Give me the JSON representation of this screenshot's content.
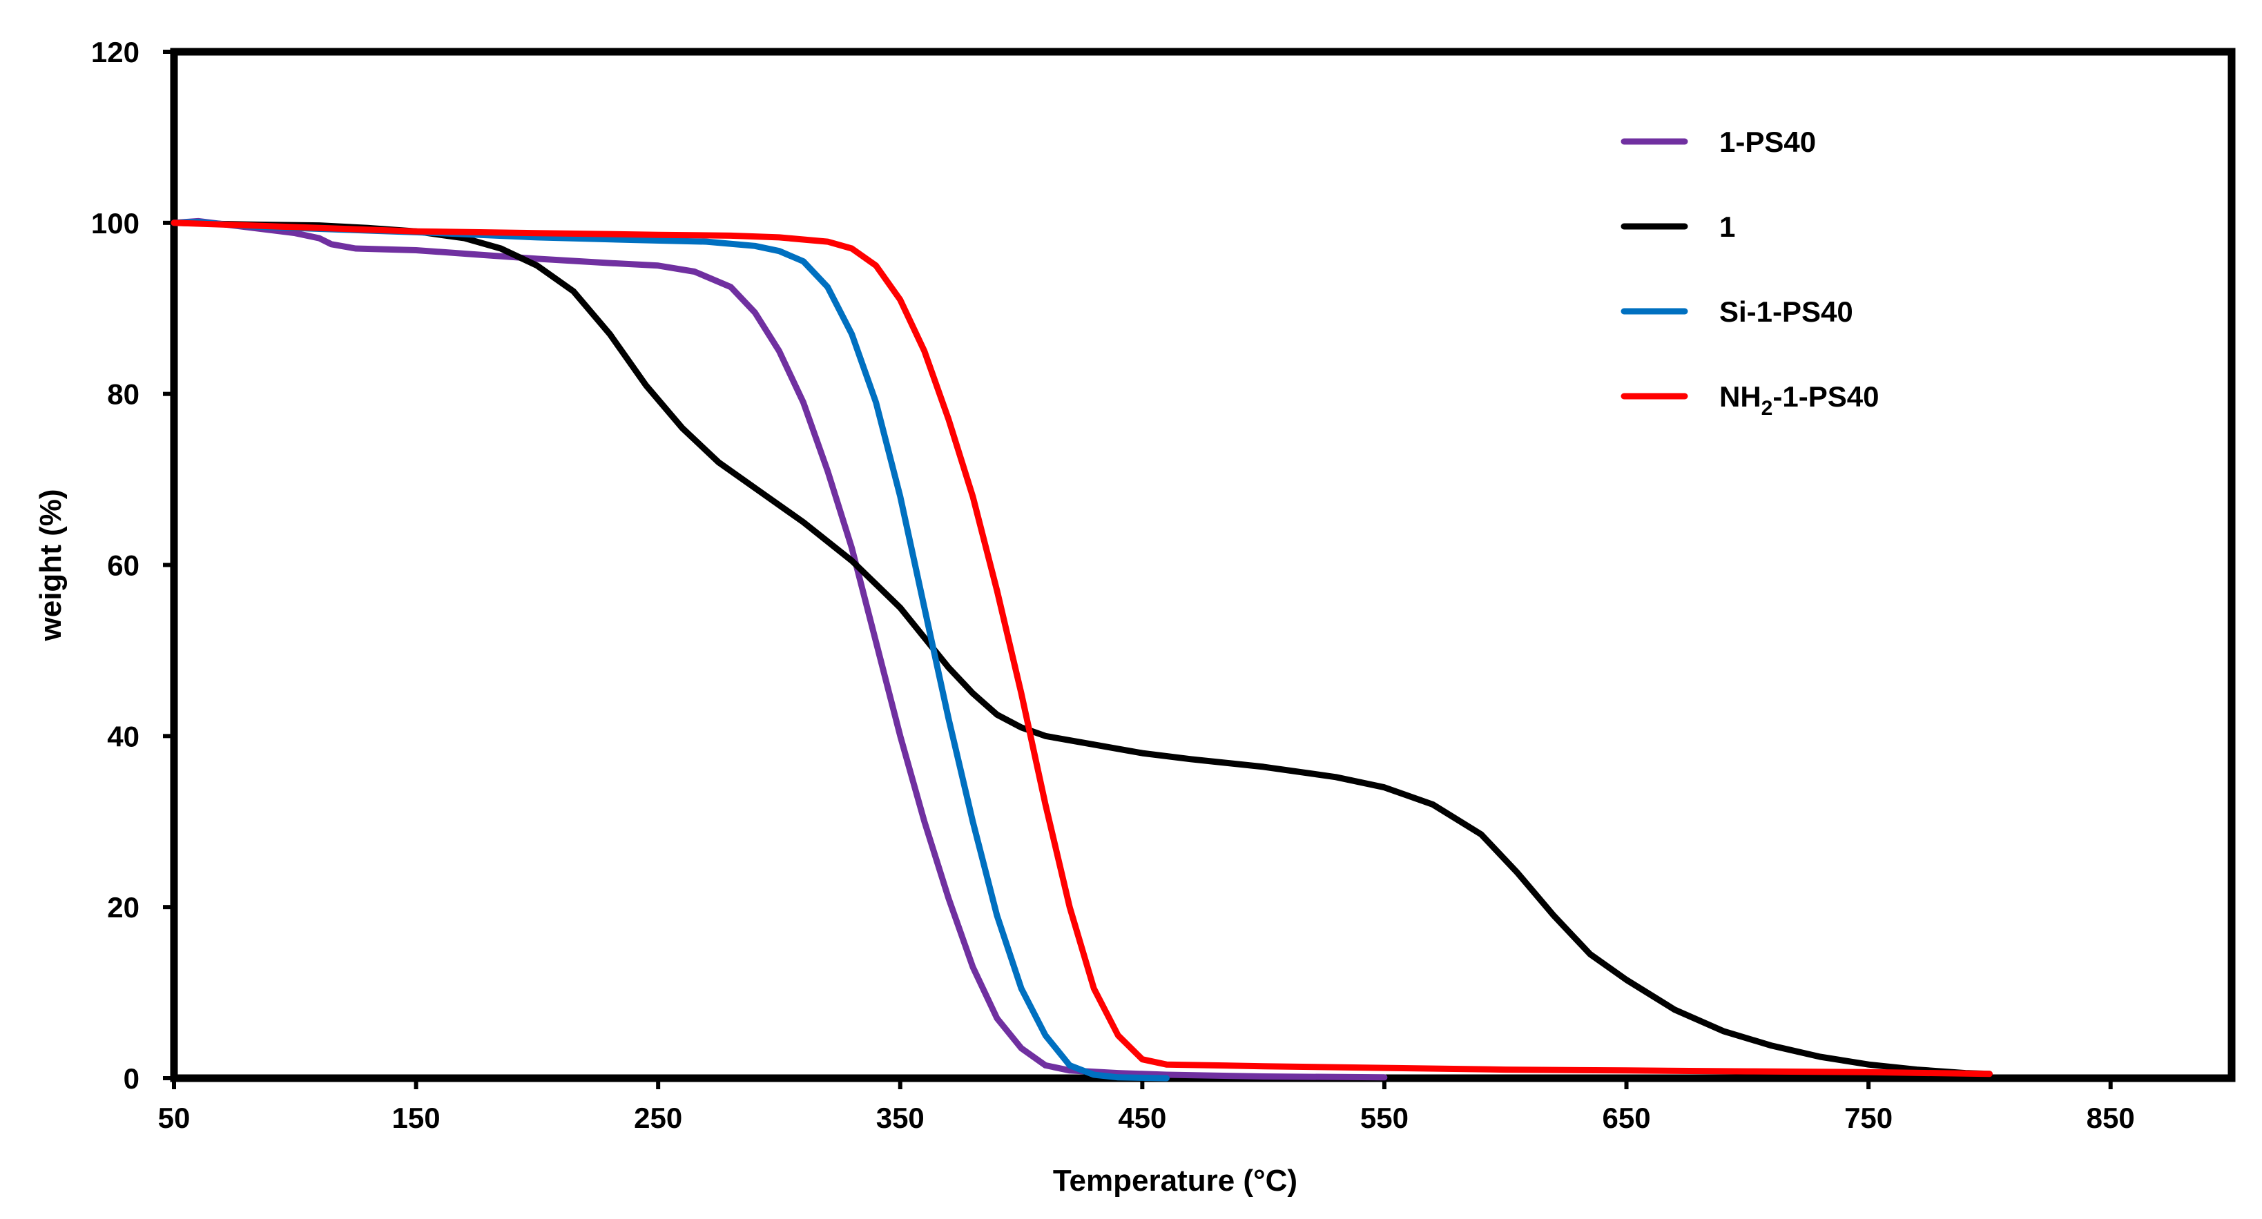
{
  "chart_data": {
    "type": "line",
    "title": "",
    "xlabel": "Temperature (°C)",
    "ylabel": "weight (%)",
    "xlim": [
      50,
      900
    ],
    "ylim": [
      0,
      120
    ],
    "xticks": [
      50,
      150,
      250,
      350,
      450,
      550,
      650,
      750,
      850
    ],
    "yticks": [
      0,
      20,
      40,
      60,
      80,
      100,
      120
    ],
    "grid": false,
    "legend_position": "top-right",
    "series": [
      {
        "name": "1-PS40",
        "label_main": "1-PS40",
        "color": "#7030A0",
        "points": [
          [
            50,
            100
          ],
          [
            60,
            100.2
          ],
          [
            80,
            99.5
          ],
          [
            100,
            98.8
          ],
          [
            110,
            98.2
          ],
          [
            115,
            97.5
          ],
          [
            125,
            97
          ],
          [
            150,
            96.8
          ],
          [
            175,
            96.3
          ],
          [
            200,
            95.8
          ],
          [
            230,
            95.3
          ],
          [
            250,
            95
          ],
          [
            265,
            94.3
          ],
          [
            280,
            92.5
          ],
          [
            290,
            89.5
          ],
          [
            300,
            85
          ],
          [
            310,
            79
          ],
          [
            320,
            71
          ],
          [
            330,
            62
          ],
          [
            340,
            51
          ],
          [
            350,
            40
          ],
          [
            360,
            30
          ],
          [
            370,
            21
          ],
          [
            380,
            13
          ],
          [
            390,
            7
          ],
          [
            400,
            3.5
          ],
          [
            410,
            1.5
          ],
          [
            420,
            0.9
          ],
          [
            440,
            0.6
          ],
          [
            460,
            0.4
          ],
          [
            500,
            0.2
          ],
          [
            550,
            0.1
          ]
        ]
      },
      {
        "name": "1",
        "label_main": "1",
        "color": "#000000",
        "points": [
          [
            50,
            100
          ],
          [
            80,
            99.8
          ],
          [
            110,
            99.7
          ],
          [
            130,
            99.4
          ],
          [
            150,
            99
          ],
          [
            170,
            98.2
          ],
          [
            185,
            97
          ],
          [
            200,
            95
          ],
          [
            215,
            92
          ],
          [
            230,
            87
          ],
          [
            245,
            81
          ],
          [
            260,
            76
          ],
          [
            275,
            72
          ],
          [
            290,
            69
          ],
          [
            310,
            65
          ],
          [
            330,
            60.5
          ],
          [
            350,
            55
          ],
          [
            360,
            51.5
          ],
          [
            370,
            48
          ],
          [
            380,
            45
          ],
          [
            390,
            42.5
          ],
          [
            400,
            41
          ],
          [
            410,
            40
          ],
          [
            430,
            39
          ],
          [
            450,
            38
          ],
          [
            470,
            37.3
          ],
          [
            500,
            36.4
          ],
          [
            530,
            35.2
          ],
          [
            550,
            34
          ],
          [
            570,
            32
          ],
          [
            590,
            28.5
          ],
          [
            605,
            24
          ],
          [
            620,
            19
          ],
          [
            635,
            14.5
          ],
          [
            650,
            11.5
          ],
          [
            670,
            8
          ],
          [
            690,
            5.5
          ],
          [
            710,
            3.8
          ],
          [
            730,
            2.5
          ],
          [
            750,
            1.6
          ],
          [
            770,
            1
          ],
          [
            790,
            0.6
          ],
          [
            800,
            0.5
          ]
        ]
      },
      {
        "name": "Si-1-PS40",
        "label_main": "Si-1-PS40",
        "color": "#0070C0",
        "points": [
          [
            50,
            100
          ],
          [
            60,
            100.1
          ],
          [
            80,
            99.6
          ],
          [
            120,
            99.2
          ],
          [
            160,
            98.8
          ],
          [
            200,
            98.3
          ],
          [
            240,
            98
          ],
          [
            270,
            97.8
          ],
          [
            290,
            97.3
          ],
          [
            300,
            96.7
          ],
          [
            310,
            95.5
          ],
          [
            320,
            92.5
          ],
          [
            330,
            87
          ],
          [
            340,
            79
          ],
          [
            350,
            68
          ],
          [
            360,
            55
          ],
          [
            370,
            42
          ],
          [
            380,
            30
          ],
          [
            390,
            19
          ],
          [
            400,
            10.5
          ],
          [
            410,
            5
          ],
          [
            420,
            1.5
          ],
          [
            430,
            0.4
          ],
          [
            440,
            0.1
          ],
          [
            460,
            0
          ]
        ]
      },
      {
        "name": "NH2-1-PS40",
        "label_main": "NH",
        "label_sub": "2",
        "label_tail": "-1-PS40",
        "color": "#FF0000",
        "points": [
          [
            50,
            100
          ],
          [
            70,
            99.8
          ],
          [
            100,
            99.5
          ],
          [
            150,
            99
          ],
          [
            200,
            98.8
          ],
          [
            250,
            98.6
          ],
          [
            280,
            98.5
          ],
          [
            300,
            98.3
          ],
          [
            320,
            97.8
          ],
          [
            330,
            97
          ],
          [
            340,
            95
          ],
          [
            350,
            91
          ],
          [
            360,
            85
          ],
          [
            370,
            77
          ],
          [
            380,
            68
          ],
          [
            390,
            57
          ],
          [
            400,
            45
          ],
          [
            410,
            32
          ],
          [
            420,
            20
          ],
          [
            430,
            10.5
          ],
          [
            440,
            5
          ],
          [
            450,
            2.2
          ],
          [
            460,
            1.6
          ],
          [
            500,
            1.4
          ],
          [
            550,
            1.2
          ],
          [
            600,
            1
          ],
          [
            650,
            0.9
          ],
          [
            700,
            0.8
          ],
          [
            750,
            0.7
          ],
          [
            800,
            0.5
          ]
        ]
      }
    ]
  }
}
